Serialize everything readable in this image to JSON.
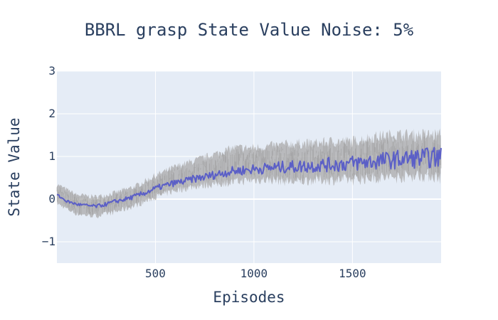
{
  "chart_data": {
    "type": "line",
    "title": "BBRL grasp State Value Noise: 5%",
    "xlabel": "Episodes",
    "ylabel": "State Value",
    "xlim": [
      0,
      1950
    ],
    "ylim": [
      -1.5,
      3
    ],
    "x_ticks": [
      500,
      1000,
      1500
    ],
    "x_tick_labels": [
      "500",
      "1000",
      "1500"
    ],
    "y_ticks": [
      -1,
      0,
      1,
      2,
      3
    ],
    "y_tick_labels": [
      "−1",
      "0",
      "1",
      "2",
      "3"
    ],
    "grid": true,
    "legend": "none",
    "colors": {
      "background": "#e5ecf6",
      "grid": "#ffffff",
      "mean_line": "#5b5fc7",
      "band": "#a9a9a9"
    },
    "series": [
      {
        "kind": "band",
        "x": [
          0,
          100,
          200,
          300,
          400,
          500,
          600,
          700,
          800,
          900,
          1000,
          1100,
          1200,
          1300,
          1400,
          1500,
          1600,
          1700,
          1800,
          1900,
          1950
        ],
        "lower": [
          -0.1,
          -0.35,
          -0.4,
          -0.3,
          -0.15,
          0.05,
          0.2,
          0.3,
          0.35,
          0.4,
          0.45,
          0.45,
          0.4,
          0.45,
          0.45,
          0.45,
          0.5,
          0.5,
          0.55,
          0.55,
          0.5
        ],
        "upper": [
          0.35,
          0.1,
          0.05,
          0.15,
          0.3,
          0.55,
          0.75,
          0.9,
          1.05,
          1.2,
          1.2,
          1.25,
          1.3,
          1.3,
          1.35,
          1.35,
          1.45,
          1.5,
          1.5,
          1.5,
          1.5
        ]
      },
      {
        "kind": "line",
        "x": [
          0,
          50,
          100,
          150,
          200,
          250,
          300,
          350,
          400,
          450,
          500,
          550,
          600,
          650,
          700,
          750,
          800,
          850,
          900,
          950,
          1000,
          1050,
          1100,
          1150,
          1200,
          1250,
          1300,
          1350,
          1400,
          1450,
          1500,
          1550,
          1600,
          1650,
          1700,
          1750,
          1800,
          1850,
          1900,
          1950
        ],
        "y": [
          0.1,
          -0.05,
          -0.12,
          -0.15,
          -0.17,
          -0.12,
          -0.05,
          0.0,
          0.07,
          0.15,
          0.25,
          0.32,
          0.38,
          0.42,
          0.48,
          0.52,
          0.57,
          0.62,
          0.66,
          0.68,
          0.7,
          0.72,
          0.74,
          0.75,
          0.76,
          0.77,
          0.78,
          0.8,
          0.81,
          0.82,
          0.84,
          0.86,
          0.88,
          0.9,
          0.92,
          0.94,
          0.95,
          0.96,
          0.97,
          0.98
        ]
      }
    ]
  }
}
